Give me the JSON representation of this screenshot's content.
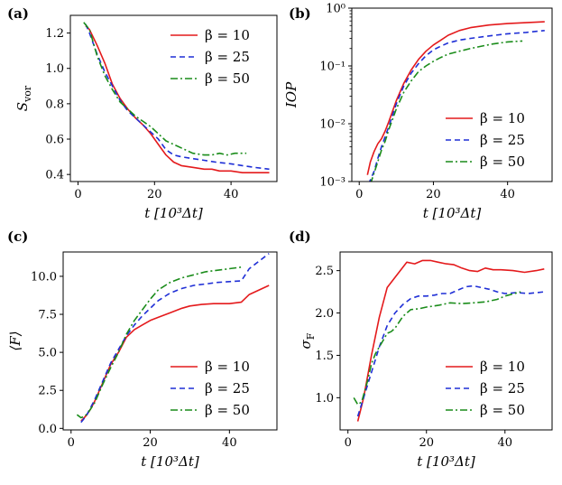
{
  "figure": {
    "panel_ids": [
      "a",
      "b",
      "c",
      "d"
    ]
  },
  "chart_data": [
    {
      "id": "a",
      "panel_label": "(a)",
      "type": "line",
      "xlabel": "t [10³Δt]",
      "ylabel": "S_vor",
      "ylabel_main": "S",
      "ylabel_sub": "vor",
      "yscale": "linear",
      "xlim": [
        -2,
        52
      ],
      "ylim": [
        0.36,
        1.3
      ],
      "xticks": [
        0,
        20,
        40
      ],
      "yticks": [
        0.4,
        0.6,
        0.8,
        1.0,
        1.2
      ],
      "ytick_labels": [
        "0.4",
        "0.6",
        "0.8",
        "1.0",
        "1.2"
      ],
      "legend_position": "top-right",
      "series": [
        {
          "name": "β = 10",
          "color": "#e41a1c",
          "dash": "solid",
          "x": [
            2,
            3,
            5,
            7,
            9,
            11,
            13,
            15,
            17,
            19,
            21,
            23,
            25,
            27,
            30,
            33,
            35,
            37,
            40,
            43,
            46,
            50
          ],
          "y": [
            1.24,
            1.22,
            1.13,
            1.03,
            0.91,
            0.83,
            0.77,
            0.72,
            0.68,
            0.63,
            0.57,
            0.51,
            0.47,
            0.45,
            0.44,
            0.43,
            0.43,
            0.42,
            0.42,
            0.41,
            0.41,
            0.41
          ]
        },
        {
          "name": "β = 25",
          "color": "#1f2fd6",
          "dash": "6,4",
          "x": [
            2,
            3,
            5,
            7,
            9,
            11,
            13,
            15,
            17,
            19,
            21,
            23,
            25,
            27,
            30,
            33,
            36,
            40,
            43,
            46,
            50
          ],
          "y": [
            1.25,
            1.2,
            1.08,
            0.98,
            0.9,
            0.82,
            0.76,
            0.72,
            0.68,
            0.64,
            0.6,
            0.54,
            0.51,
            0.5,
            0.49,
            0.48,
            0.47,
            0.46,
            0.45,
            0.44,
            0.43
          ]
        },
        {
          "name": "β = 50",
          "color": "#1a8c1a",
          "dash": "8,3,2,3",
          "x": [
            1.5,
            3,
            5,
            7,
            9,
            11,
            13,
            15,
            17,
            19,
            21,
            23,
            25,
            27,
            30,
            33,
            35,
            37,
            39,
            41,
            44
          ],
          "y": [
            1.26,
            1.22,
            1.07,
            0.96,
            0.88,
            0.81,
            0.77,
            0.73,
            0.7,
            0.67,
            0.63,
            0.59,
            0.57,
            0.55,
            0.52,
            0.51,
            0.51,
            0.52,
            0.51,
            0.52,
            0.52
          ]
        }
      ]
    },
    {
      "id": "b",
      "panel_label": "(b)",
      "type": "line",
      "xlabel": "t [10³Δt]",
      "ylabel": "IOP",
      "yscale": "log",
      "xlim": [
        -2,
        52
      ],
      "ylim": [
        0.001,
        1.0
      ],
      "xticks": [
        0,
        20,
        40
      ],
      "yticks": [
        0.001,
        0.01,
        0.1,
        1.0
      ],
      "ytick_labels": [
        "10⁻³",
        "10⁻²",
        "10⁻¹",
        "10⁰"
      ],
      "legend_position": "bottom-right",
      "series": [
        {
          "name": "β = 10",
          "color": "#e41a1c",
          "dash": "solid",
          "x": [
            2.2,
            3,
            4,
            5,
            6,
            7,
            8,
            10,
            12,
            14,
            16,
            18,
            20,
            22,
            24,
            27,
            30,
            35,
            40,
            45,
            50
          ],
          "y": [
            0.0013,
            0.0022,
            0.0033,
            0.0045,
            0.0055,
            0.0075,
            0.011,
            0.025,
            0.05,
            0.085,
            0.13,
            0.18,
            0.23,
            0.28,
            0.34,
            0.41,
            0.46,
            0.51,
            0.54,
            0.56,
            0.58
          ]
        },
        {
          "name": "β = 25",
          "color": "#1f2fd6",
          "dash": "6,4",
          "x": [
            2.5,
            4,
            5,
            6,
            7,
            8,
            10,
            12,
            14,
            16,
            18,
            20,
            22,
            24,
            27,
            30,
            35,
            40,
            45,
            50
          ],
          "y": [
            0.0009,
            0.0015,
            0.0025,
            0.004,
            0.006,
            0.009,
            0.022,
            0.045,
            0.075,
            0.11,
            0.15,
            0.19,
            0.22,
            0.25,
            0.28,
            0.3,
            0.33,
            0.36,
            0.38,
            0.41
          ]
        },
        {
          "name": "β = 50",
          "color": "#1a8c1a",
          "dash": "8,3,2,3",
          "x": [
            3,
            4,
            5,
            6,
            7,
            8,
            10,
            12,
            14,
            16,
            18,
            20,
            22,
            24,
            27,
            30,
            33,
            36,
            40,
            44
          ],
          "y": [
            0.0009,
            0.0014,
            0.0022,
            0.0035,
            0.005,
            0.008,
            0.018,
            0.035,
            0.055,
            0.08,
            0.1,
            0.12,
            0.14,
            0.16,
            0.18,
            0.2,
            0.22,
            0.24,
            0.26,
            0.27
          ]
        }
      ]
    },
    {
      "id": "c",
      "panel_label": "(c)",
      "type": "line",
      "xlabel": "t [10³Δt]",
      "ylabel": "⟨F⟩",
      "yscale": "linear",
      "xlim": [
        -2,
        52
      ],
      "ylim": [
        -0.1,
        11.6
      ],
      "xticks": [
        0,
        20,
        40
      ],
      "yticks": [
        0.0,
        2.5,
        5.0,
        7.5,
        10.0
      ],
      "ytick_labels": [
        "0.0",
        "2.5",
        "5.0",
        "7.5",
        "10.0"
      ],
      "legend_position": "bottom-right",
      "series": [
        {
          "name": "β = 10",
          "color": "#e41a1c",
          "dash": "solid",
          "x": [
            2.5,
            3,
            4,
            5,
            6,
            7,
            8,
            10,
            12,
            14,
            16,
            18,
            20,
            22,
            25,
            28,
            30,
            33,
            36,
            40,
            43,
            45,
            50
          ],
          "y": [
            0.5,
            0.6,
            0.9,
            1.3,
            1.8,
            2.4,
            3.0,
            4.2,
            5.0,
            6.0,
            6.5,
            6.8,
            7.1,
            7.3,
            7.6,
            7.9,
            8.05,
            8.15,
            8.2,
            8.2,
            8.3,
            8.8,
            9.4
          ]
        },
        {
          "name": "β = 25",
          "color": "#1f2fd6",
          "dash": "6,4",
          "x": [
            2.5,
            3,
            4,
            5,
            6,
            7,
            8,
            10,
            12,
            14,
            16,
            18,
            20,
            22,
            25,
            28,
            31,
            34,
            37,
            40,
            43,
            45,
            50
          ],
          "y": [
            0.4,
            0.55,
            0.9,
            1.4,
            1.9,
            2.5,
            3.1,
            4.3,
            5.2,
            6.1,
            6.8,
            7.4,
            7.9,
            8.4,
            8.9,
            9.2,
            9.4,
            9.5,
            9.6,
            9.65,
            9.7,
            10.5,
            11.5
          ]
        },
        {
          "name": "β = 50",
          "color": "#1a8c1a",
          "dash": "8,3,2,3",
          "x": [
            1.5,
            2.5,
            3.5,
            4.5,
            6,
            7,
            8,
            10,
            12,
            14,
            16,
            18,
            20,
            22,
            25,
            28,
            31,
            34,
            37,
            40,
            43
          ],
          "y": [
            0.9,
            0.7,
            0.8,
            1.1,
            1.7,
            2.3,
            2.9,
            4.0,
            5.0,
            6.2,
            7.1,
            7.8,
            8.5,
            9.1,
            9.6,
            9.9,
            10.1,
            10.3,
            10.4,
            10.5,
            10.6
          ]
        }
      ]
    },
    {
      "id": "d",
      "panel_label": "(d)",
      "type": "line",
      "xlabel": "t [10³Δt]",
      "ylabel": "σ_F",
      "ylabel_main": "σ",
      "ylabel_sub": "F",
      "yscale": "linear",
      "xlim": [
        -2,
        52
      ],
      "ylim": [
        0.62,
        2.72
      ],
      "xticks": [
        0,
        20,
        40
      ],
      "yticks": [
        1.0,
        1.5,
        2.0,
        2.5
      ],
      "ytick_labels": [
        "1.0",
        "1.5",
        "2.0",
        "2.5"
      ],
      "legend_position": "bottom-right",
      "series": [
        {
          "name": "β = 10",
          "color": "#e41a1c",
          "dash": "solid",
          "x": [
            2.5,
            4,
            6,
            8,
            10,
            12,
            15,
            17,
            19,
            21,
            23,
            25,
            27,
            29,
            31,
            33,
            35,
            37,
            39,
            42,
            45,
            48,
            50
          ],
          "y": [
            0.72,
            1.0,
            1.5,
            1.95,
            2.3,
            2.42,
            2.6,
            2.58,
            2.62,
            2.62,
            2.6,
            2.58,
            2.57,
            2.53,
            2.5,
            2.49,
            2.53,
            2.51,
            2.51,
            2.5,
            2.48,
            2.5,
            2.52
          ]
        },
        {
          "name": "β = 25",
          "color": "#1f2fd6",
          "dash": "6,4",
          "x": [
            2.5,
            4,
            6,
            8,
            10,
            12,
            14,
            16,
            18,
            20,
            22,
            24,
            26,
            28,
            30,
            32,
            34,
            36,
            38,
            40,
            43,
            46,
            50
          ],
          "y": [
            0.78,
            1.0,
            1.3,
            1.6,
            1.85,
            2.0,
            2.1,
            2.17,
            2.2,
            2.2,
            2.21,
            2.23,
            2.23,
            2.27,
            2.31,
            2.32,
            2.3,
            2.28,
            2.25,
            2.23,
            2.24,
            2.23,
            2.25
          ]
        },
        {
          "name": "β = 50",
          "color": "#1a8c1a",
          "dash": "8,3,2,3",
          "x": [
            1.5,
            2.5,
            3.5,
            5,
            6,
            7,
            8,
            9,
            10,
            11,
            12,
            14,
            16,
            18,
            20,
            23,
            26,
            29,
            32,
            35,
            38,
            40,
            44
          ],
          "y": [
            1.0,
            0.92,
            0.95,
            1.2,
            1.4,
            1.52,
            1.6,
            1.68,
            1.76,
            1.78,
            1.82,
            1.96,
            2.04,
            2.05,
            2.07,
            2.09,
            2.12,
            2.11,
            2.12,
            2.13,
            2.16,
            2.2,
            2.25
          ]
        }
      ]
    }
  ]
}
